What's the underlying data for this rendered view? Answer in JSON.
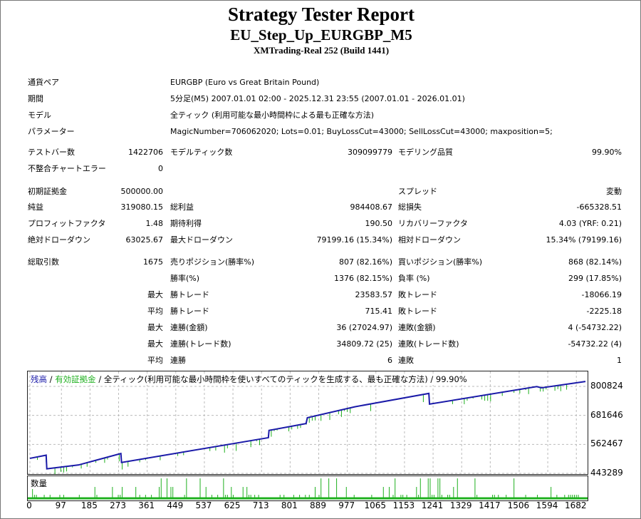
{
  "header": {
    "title": "Strategy Tester Report",
    "subtitle": "EU_Step_Up_EURGBP_M5",
    "server": "XMTrading-Real 252 (Build 1441)"
  },
  "info": [
    {
      "label": "通貨ペア",
      "value": "EURGBP (Euro vs Great Britain Pound)"
    },
    {
      "label": "期間",
      "value": "5分足(M5) 2007.01.01 02:00 - 2025.12.31 23:55 (2007.01.01 - 2026.01.01)"
    },
    {
      "label": "モデル",
      "value": "全ティック (利用可能な最小時間枠による最も正確な方法)"
    },
    {
      "label": "パラメーター",
      "value": "MagicNumber=706062020; Lots=0.01; BuyLossCut=43000; SellLossCut=43000; maxposition=5;"
    }
  ],
  "stats": [
    [
      "テストバー数",
      "1422706",
      "モデルティック数",
      "309099779",
      "モデリング品質",
      "99.90%"
    ],
    [
      "不整合チャートエラー",
      "0",
      "",
      "",
      "",
      ""
    ],
    [
      "初期証拠金",
      "500000.00",
      "",
      "",
      "スプレッド",
      "変動"
    ],
    [
      "純益",
      "319080.15",
      "総利益",
      "984408.67",
      "総損失",
      "-665328.51"
    ],
    [
      "プロフィットファクタ",
      "1.48",
      "期待利得",
      "190.50",
      "リカバリーファクタ",
      "4.03 (YRF: 0.21)"
    ],
    [
      "絶対ドローダウン",
      "63025.67",
      "最大ドローダウン",
      "79199.16 (15.34%)",
      "相対ドローダウン",
      "15.34% (79199.16)"
    ],
    [
      "総取引数",
      "1675",
      "売りポジション(勝率%)",
      "807 (82.16%)",
      "買いポジション(勝率%)",
      "868 (82.14%)"
    ],
    [
      "",
      "",
      "勝率(%)",
      "1376 (82.15%)",
      "負率 (%)",
      "299 (17.85%)"
    ],
    [
      "",
      "最大",
      "勝トレード",
      "23583.57",
      "敗トレード",
      "-18066.19"
    ],
    [
      "",
      "平均",
      "勝トレード",
      "715.41",
      "敗トレード",
      "-2225.18"
    ],
    [
      "",
      "最大",
      "連勝(金額)",
      "36 (27024.97)",
      "連敗(金額)",
      "4 (-54732.22)"
    ],
    [
      "",
      "最大",
      "連勝(トレード数)",
      "34809.72 (25)",
      "連敗(トレード数)",
      "-54732.22 (4)"
    ],
    [
      "",
      "平均",
      "連勝",
      "6",
      "連敗",
      "1"
    ]
  ],
  "chart_data": {
    "type": "line",
    "legend": {
      "balance": "残高",
      "equity": "有効証拠金",
      "sep": " / ",
      "model": " / 全ティック(利用可能な最小時間枠を使いすべてのティックを生成する、最も正確な方法) / 99.90%"
    },
    "colors": {
      "balance": "#1a1aa8",
      "equity": "#1fb01f",
      "volume": "#1fb01f"
    },
    "ylim": [
      443289,
      800824
    ],
    "yticks": [
      "800824",
      "681646",
      "562467",
      "443289"
    ],
    "xticks": [
      "0",
      "97",
      "185",
      "273",
      "361",
      "449",
      "537",
      "625",
      "713",
      "801",
      "889",
      "977",
      "1065",
      "1153",
      "1241",
      "1329",
      "1417",
      "1506",
      "1594",
      "1682"
    ],
    "xlim": [
      0,
      1710
    ],
    "balance": [
      [
        0,
        505000
      ],
      [
        50,
        518000
      ],
      [
        52,
        462000
      ],
      [
        150,
        478000
      ],
      [
        280,
        525000
      ],
      [
        282,
        488000
      ],
      [
        734,
        590000
      ],
      [
        736,
        620000
      ],
      [
        850,
        648000
      ],
      [
        854,
        672000
      ],
      [
        1000,
        717000
      ],
      [
        1228,
        772000
      ],
      [
        1230,
        728000
      ],
      [
        1560,
        800000
      ],
      [
        1575,
        795000
      ],
      [
        1710,
        821000
      ]
    ],
    "volume_label": "数量",
    "grid": true
  }
}
